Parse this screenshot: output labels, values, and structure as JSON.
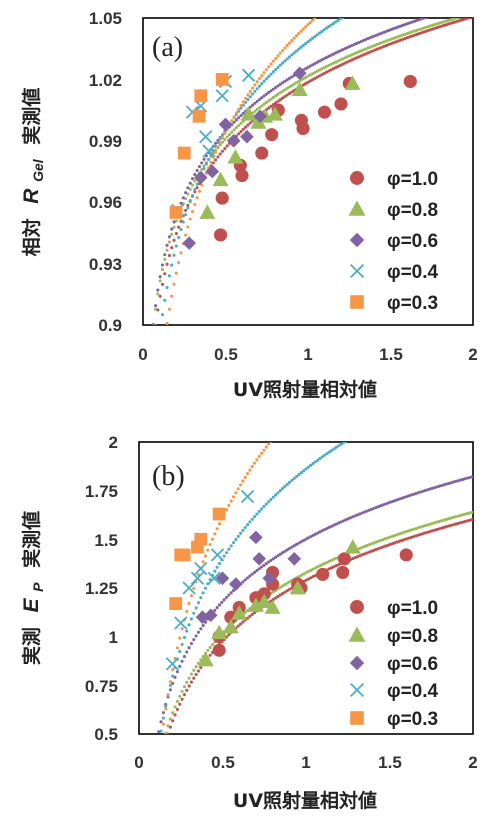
{
  "colors": {
    "phi_1_0": "#C0504D",
    "phi_0_8": "#9BBB59",
    "phi_0_6": "#8064A2",
    "phi_0_4": "#4BACC6",
    "phi_0_3": "#F79646"
  },
  "chart_data": [
    {
      "type": "scatter",
      "panel_label": "(a)",
      "xlabel": "UV照射量相対値",
      "ylabel_prefix": "相対",
      "ylabel_var": "R",
      "ylabel_sub": "Gel",
      "ylabel_suffix": "実測値",
      "xlim": [
        0,
        2
      ],
      "ylim": [
        0.9,
        1.05
      ],
      "xticks": [
        "0",
        "0.5",
        "1",
        "1.5",
        "2"
      ],
      "xtick_values": [
        0,
        0.5,
        1,
        1.5,
        2
      ],
      "yticks": [
        "0.9",
        "0.93",
        "0.96",
        "0.99",
        "1.02",
        "1.05"
      ],
      "ytick_values": [
        0.9,
        0.93,
        0.96,
        0.99,
        1.02,
        1.05
      ],
      "legend_position": "right",
      "series": [
        {
          "name": "φ=1.0",
          "marker": "circle",
          "color": "#C0504D",
          "points": [
            [
              0.47,
              0.944
            ],
            [
              0.48,
              0.962
            ],
            [
              0.59,
              0.978
            ],
            [
              0.6,
              0.973
            ],
            [
              0.72,
              0.984
            ],
            [
              0.78,
              0.993
            ],
            [
              0.82,
              1.005
            ],
            [
              0.96,
              1.0
            ],
            [
              0.97,
              0.996
            ],
            [
              1.1,
              1.004
            ],
            [
              1.2,
              1.008
            ],
            [
              1.25,
              1.018
            ],
            [
              1.62,
              1.019
            ]
          ],
          "trend": {
            "a": 1.0186,
            "b": 0.0462
          }
        },
        {
          "name": "φ=0.8",
          "marker": "triangle",
          "color": "#9BBB59",
          "points": [
            [
              0.39,
              0.955
            ],
            [
              0.47,
              0.971
            ],
            [
              0.56,
              0.982
            ],
            [
              0.64,
              1.003
            ],
            [
              0.7,
              0.999
            ],
            [
              0.74,
              1.002
            ],
            [
              0.8,
              1.003
            ],
            [
              0.95,
              1.015
            ],
            [
              1.27,
              1.018
            ]
          ],
          "trend": {
            "a": 1.0216,
            "b": 0.0442
          }
        },
        {
          "name": "φ=0.6",
          "marker": "diamond",
          "color": "#8064A2",
          "points": [
            [
              0.28,
              0.94
            ],
            [
              0.35,
              0.972
            ],
            [
              0.42,
              0.975
            ],
            [
              0.5,
              0.998
            ],
            [
              0.55,
              0.99
            ],
            [
              0.63,
              0.992
            ],
            [
              0.71,
              1.002
            ],
            [
              0.95,
              1.023
            ]
          ],
          "trend": {
            "a": 1.0259,
            "b": 0.0452
          }
        },
        {
          "name": "φ=0.4",
          "marker": "x",
          "color": "#4BACC6",
          "points": [
            [
              0.21,
              0.956
            ],
            [
              0.3,
              1.004
            ],
            [
              0.35,
              1.007
            ],
            [
              0.38,
              0.992
            ],
            [
              0.4,
              0.985
            ],
            [
              0.48,
              1.012
            ],
            [
              0.5,
              1.019
            ],
            [
              0.64,
              1.022
            ]
          ],
          "trend": {
            "a": 1.0384,
            "b": 0.0624
          }
        },
        {
          "name": "φ=0.3",
          "marker": "square",
          "color": "#F79646",
          "points": [
            [
              0.2,
              0.955
            ],
            [
              0.25,
              0.984
            ],
            [
              0.34,
              1.002
            ],
            [
              0.35,
              1.012
            ],
            [
              0.48,
              1.02
            ]
          ],
          "trend": {
            "a": 1.0468,
            "b": 0.0759
          }
        }
      ]
    },
    {
      "type": "scatter",
      "panel_label": "(b)",
      "xlabel": "UV照射量相対値",
      "ylabel_prefix": "実測",
      "ylabel_var": "E",
      "ylabel_sub": "P",
      "ylabel_suffix": "実測値",
      "xlim": [
        0,
        2
      ],
      "ylim": [
        0.5,
        2
      ],
      "xticks": [
        "0",
        "0.5",
        "1",
        "1.5",
        "2"
      ],
      "xtick_values": [
        0,
        0.5,
        1,
        1.5,
        2
      ],
      "yticks": [
        "0.5",
        "0.75",
        "1",
        "1.25",
        "1.5",
        "1.75",
        "2"
      ],
      "ytick_values": [
        0.5,
        0.75,
        1,
        1.25,
        1.5,
        1.75,
        2
      ],
      "legend_position": "right",
      "series": [
        {
          "name": "φ=1.0",
          "marker": "circle",
          "color": "#C0504D",
          "points": [
            [
              0.48,
              0.93
            ],
            [
              0.48,
              1.0
            ],
            [
              0.55,
              1.1
            ],
            [
              0.6,
              1.15
            ],
            [
              0.7,
              1.2
            ],
            [
              0.75,
              1.22
            ],
            [
              0.8,
              1.27
            ],
            [
              0.8,
              1.33
            ],
            [
              0.95,
              1.27
            ],
            [
              0.97,
              1.25
            ],
            [
              1.1,
              1.32
            ],
            [
              1.22,
              1.33
            ],
            [
              1.23,
              1.4
            ],
            [
              1.6,
              1.42
            ]
          ],
          "trend": {
            "a": 1.2896,
            "b": 0.4513
          }
        },
        {
          "name": "φ=0.8",
          "marker": "triangle",
          "color": "#9BBB59",
          "points": [
            [
              0.4,
              0.88
            ],
            [
              0.48,
              1.02
            ],
            [
              0.55,
              1.05
            ],
            [
              0.6,
              1.12
            ],
            [
              0.7,
              1.16
            ],
            [
              0.75,
              1.18
            ],
            [
              0.8,
              1.15
            ],
            [
              0.95,
              1.25
            ],
            [
              1.28,
              1.46
            ]
          ],
          "trend": {
            "a": 1.3282,
            "b": 0.4497
          }
        },
        {
          "name": "φ=0.6",
          "marker": "diamond",
          "color": "#8064A2",
          "points": [
            [
              0.38,
              1.1
            ],
            [
              0.43,
              1.11
            ],
            [
              0.5,
              1.3
            ],
            [
              0.58,
              1.27
            ],
            [
              0.7,
              1.51
            ],
            [
              0.72,
              1.4
            ],
            [
              0.78,
              1.3
            ],
            [
              0.93,
              1.4
            ]
          ],
          "trend": {
            "a": 1.5011,
            "b": 0.4633
          }
        },
        {
          "name": "φ=0.4",
          "marker": "x",
          "color": "#4BACC6",
          "points": [
            [
              0.2,
              0.86
            ],
            [
              0.25,
              1.07
            ],
            [
              0.3,
              1.25
            ],
            [
              0.35,
              1.3
            ],
            [
              0.37,
              1.35
            ],
            [
              0.45,
              1.3
            ],
            [
              0.47,
              1.42
            ],
            [
              0.65,
              1.72
            ]
          ],
          "trend": {
            "a": 1.8617,
            "b": 0.6653
          }
        },
        {
          "name": "φ=0.3",
          "marker": "square",
          "color": "#F79646",
          "points": [
            [
              0.22,
              1.17
            ],
            [
              0.25,
              1.42
            ],
            [
              0.27,
              1.42
            ],
            [
              0.35,
              1.46
            ],
            [
              0.37,
              1.5
            ],
            [
              0.48,
              1.63
            ]
          ],
          "trend": {
            "a": 2.2084,
            "b": 0.8616
          }
        }
      ]
    }
  ]
}
